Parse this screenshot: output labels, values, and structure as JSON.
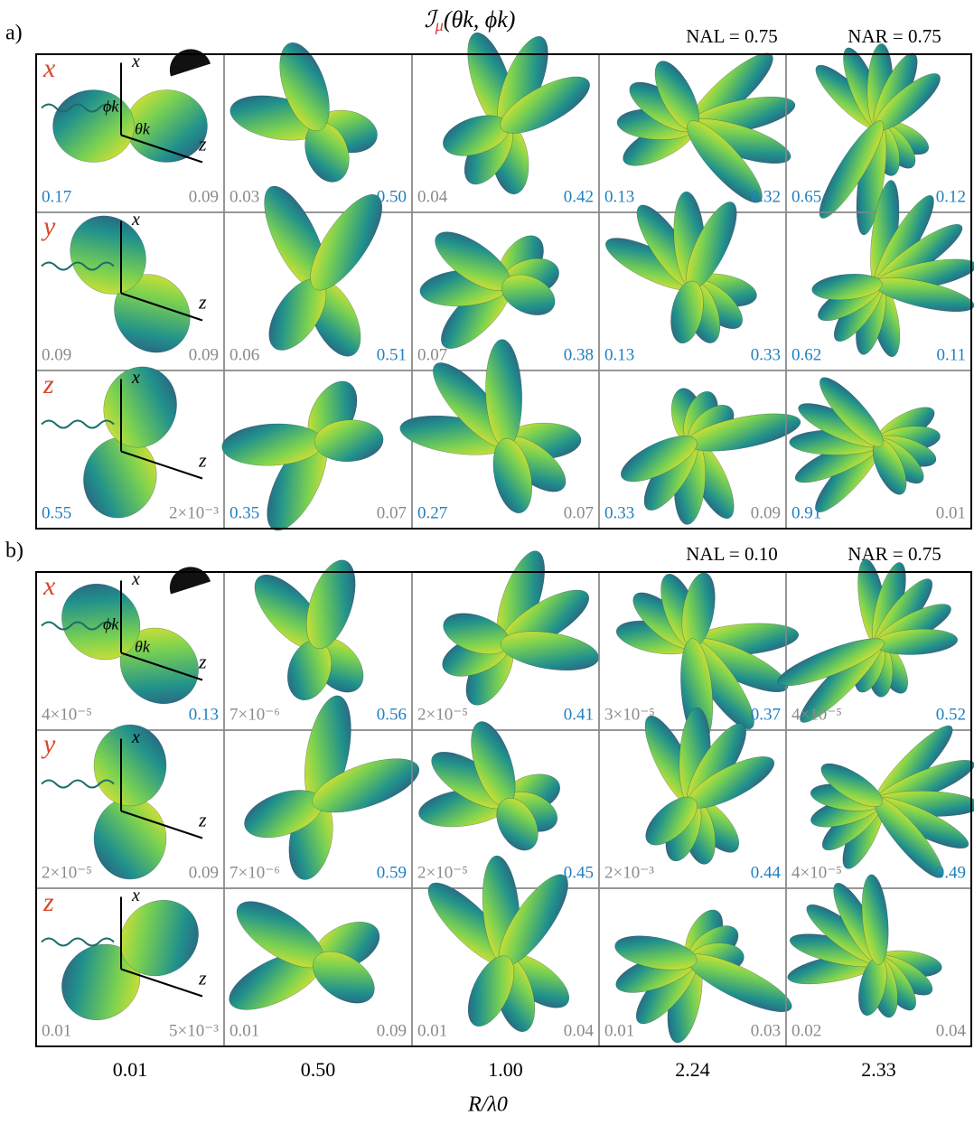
{
  "title": {
    "symbol": "ℐ",
    "sub": "μ",
    "args": "(θk, ϕk)"
  },
  "axis_labels": {
    "x": "x",
    "z": "z"
  },
  "angle_labels": [
    "ϕk",
    "θk"
  ],
  "columns": [
    "0.01",
    "0.50",
    "1.00",
    "2.24",
    "2.33"
  ],
  "x_title": "R/λ0",
  "panels": [
    {
      "label": "a)",
      "na_left": "NAL = 0.75",
      "na_right": "NAR = 0.75",
      "rows": [
        {
          "label": "x",
          "cells": [
            {
              "values": [
                "0.17",
                "0.09"
              ],
              "blue": [
                true,
                false
              ]
            },
            {
              "values": [
                "0.03",
                "0.50"
              ],
              "blue": [
                false,
                true
              ]
            },
            {
              "values": [
                "0.04",
                "0.42"
              ],
              "blue": [
                false,
                true
              ]
            },
            {
              "values": [
                "0.13",
                "0.32"
              ],
              "blue": [
                true,
                true
              ]
            },
            {
              "values": [
                "0.65",
                "0.12"
              ],
              "blue": [
                true,
                true
              ]
            }
          ]
        },
        {
          "label": "y",
          "cells": [
            {
              "values": [
                "0.09",
                "0.09"
              ],
              "blue": [
                false,
                false
              ]
            },
            {
              "values": [
                "0.06",
                "0.51"
              ],
              "blue": [
                false,
                true
              ]
            },
            {
              "values": [
                "0.07",
                "0.38"
              ],
              "blue": [
                false,
                true
              ]
            },
            {
              "values": [
                "0.13",
                "0.33"
              ],
              "blue": [
                true,
                true
              ]
            },
            {
              "values": [
                "0.62",
                "0.11"
              ],
              "blue": [
                true,
                true
              ]
            }
          ]
        },
        {
          "label": "z",
          "cells": [
            {
              "values": [
                "0.55",
                "2×10⁻³"
              ],
              "blue": [
                true,
                false
              ]
            },
            {
              "values": [
                "0.35",
                "0.07"
              ],
              "blue": [
                true,
                false
              ]
            },
            {
              "values": [
                "0.27",
                "0.07"
              ],
              "blue": [
                true,
                false
              ]
            },
            {
              "values": [
                "0.33",
                "0.09"
              ],
              "blue": [
                true,
                false
              ]
            },
            {
              "values": [
                "0.91",
                "0.01"
              ],
              "blue": [
                true,
                false
              ]
            }
          ]
        }
      ]
    },
    {
      "label": "b)",
      "na_left": "NAL = 0.10",
      "na_right": "NAR = 0.75",
      "rows": [
        {
          "label": "x",
          "cells": [
            {
              "values": [
                "4×10⁻⁵",
                "0.13"
              ],
              "blue": [
                false,
                true
              ]
            },
            {
              "values": [
                "7×10⁻⁶",
                "0.56"
              ],
              "blue": [
                false,
                true
              ]
            },
            {
              "values": [
                "2×10⁻⁵",
                "0.41"
              ],
              "blue": [
                false,
                true
              ]
            },
            {
              "values": [
                "3×10⁻⁵",
                "0.37"
              ],
              "blue": [
                false,
                true
              ]
            },
            {
              "values": [
                "4×10⁻⁵",
                "0.52"
              ],
              "blue": [
                false,
                true
              ]
            }
          ]
        },
        {
          "label": "y",
          "cells": [
            {
              "values": [
                "2×10⁻⁵",
                "0.09"
              ],
              "blue": [
                false,
                false
              ]
            },
            {
              "values": [
                "7×10⁻⁶",
                "0.59"
              ],
              "blue": [
                false,
                true
              ]
            },
            {
              "values": [
                "2×10⁻⁵",
                "0.45"
              ],
              "blue": [
                false,
                true
              ]
            },
            {
              "values": [
                "2×10⁻³",
                "0.44"
              ],
              "blue": [
                false,
                true
              ]
            },
            {
              "values": [
                "4×10⁻⁵",
                "0.49"
              ],
              "blue": [
                false,
                true
              ]
            }
          ]
        },
        {
          "label": "z",
          "cells": [
            {
              "values": [
                "0.01",
                "5×10⁻³"
              ],
              "blue": [
                false,
                false
              ]
            },
            {
              "values": [
                "0.01",
                "0.09"
              ],
              "blue": [
                false,
                false
              ]
            },
            {
              "values": [
                "0.01",
                "0.04"
              ],
              "blue": [
                false,
                false
              ]
            },
            {
              "values": [
                "0.01",
                "0.03"
              ],
              "blue": [
                false,
                false
              ]
            },
            {
              "values": [
                "0.02",
                "0.04"
              ],
              "blue": [
                false,
                false
              ]
            }
          ]
        }
      ]
    }
  ]
}
